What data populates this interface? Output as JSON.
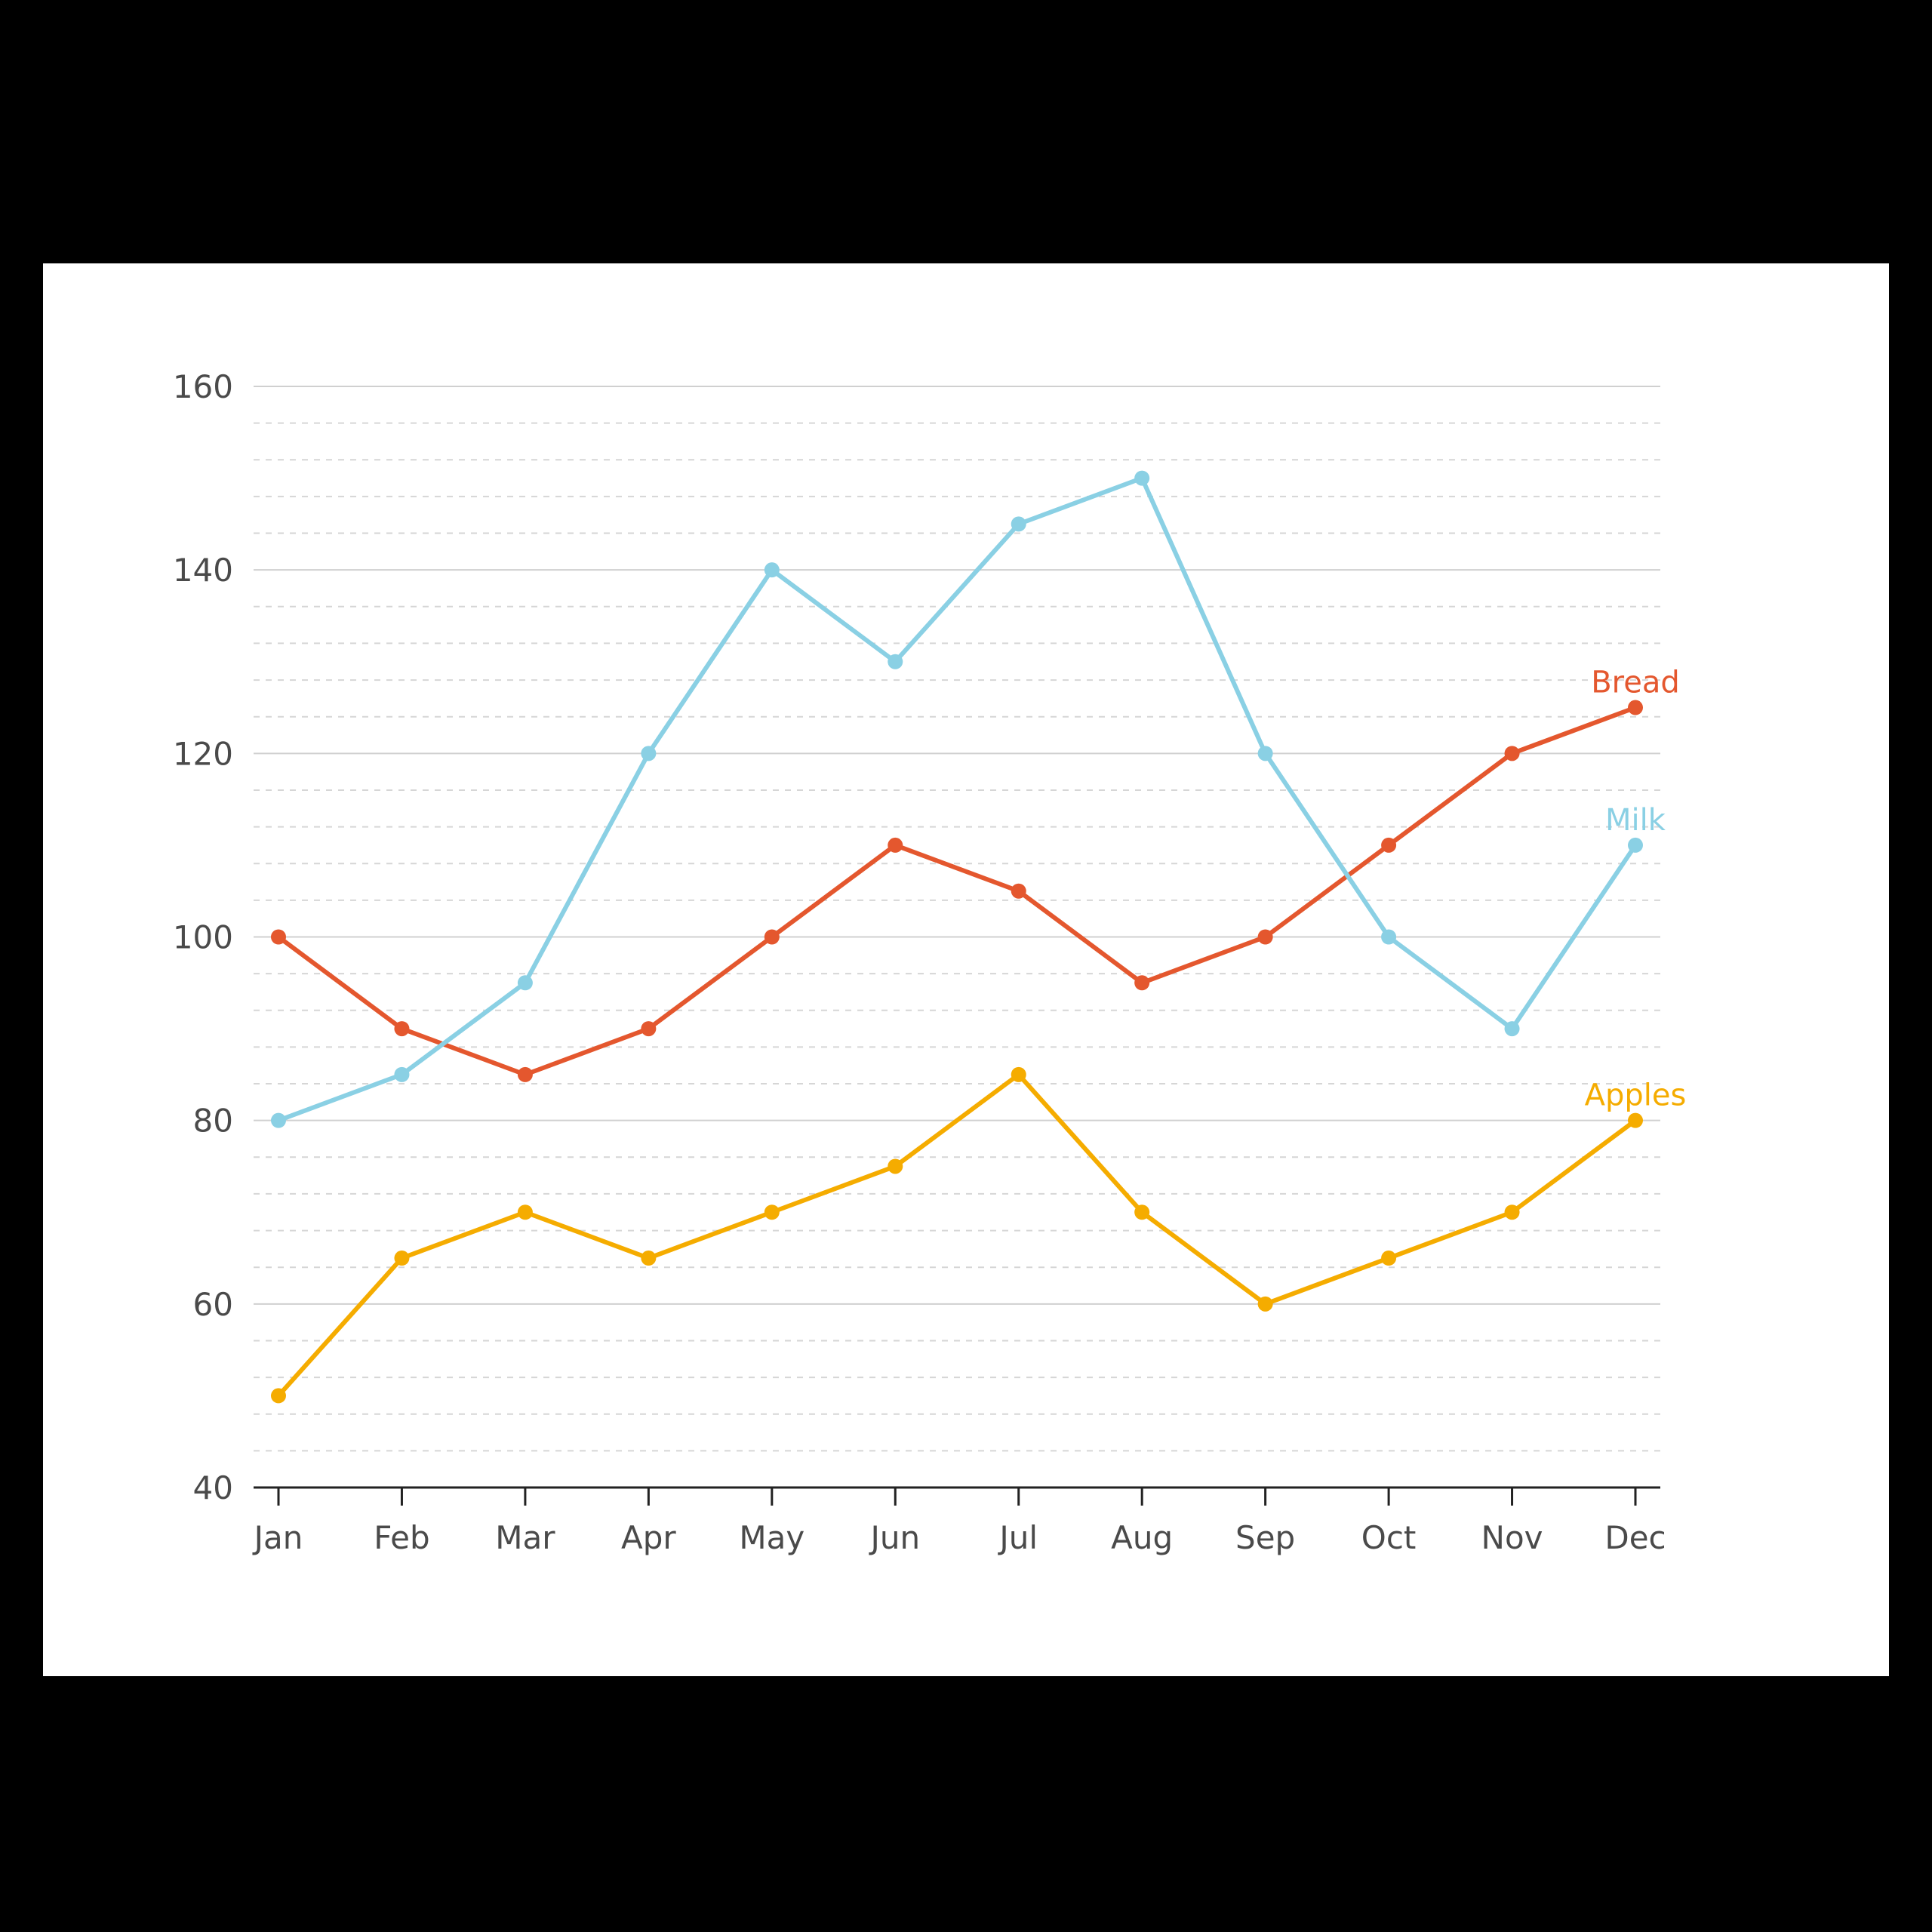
{
  "chart_data": {
    "type": "line",
    "title": "",
    "xlabel": "",
    "ylabel": "",
    "categories": [
      "Jan",
      "Feb",
      "Mar",
      "Apr",
      "May",
      "Jun",
      "Jul",
      "Aug",
      "Sep",
      "Oct",
      "Nov",
      "Dec"
    ],
    "ylim": [
      40,
      160
    ],
    "yticks": [
      40,
      60,
      80,
      100,
      120,
      140,
      160
    ],
    "minor_grid_step": 4,
    "grid": true,
    "legend_position": "inline-end-labels",
    "series": [
      {
        "name": "Bread",
        "color": "#e4572e",
        "values": [
          100,
          90,
          85,
          90,
          100,
          110,
          105,
          95,
          100,
          110,
          120,
          125
        ]
      },
      {
        "name": "Milk",
        "color": "#8ad0e4",
        "values": [
          80,
          85,
          95,
          120,
          140,
          130,
          145,
          150,
          120,
          100,
          90,
          110
        ]
      },
      {
        "name": "Apples",
        "color": "#f5ac00",
        "values": [
          50,
          65,
          70,
          65,
          70,
          75,
          85,
          70,
          60,
          65,
          70,
          80
        ]
      }
    ]
  }
}
